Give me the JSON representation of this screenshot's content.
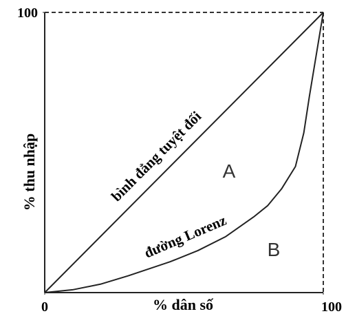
{
  "chart_data": {
    "type": "line",
    "x_label": "% dân số",
    "y_label": "% thu nhập",
    "xlim": [
      0,
      100
    ],
    "ylim": [
      0,
      100
    ],
    "xticks": [
      0,
      100
    ],
    "yticks": [
      100
    ],
    "series": [
      {
        "name": "bình đẳng tuyệt đối",
        "color": "#222222",
        "x": [
          0,
          100
        ],
        "values": [
          0,
          100
        ]
      },
      {
        "name": "đường Lorenz",
        "color": "#222222",
        "x": [
          0,
          10,
          20,
          30,
          45,
          55,
          65,
          75,
          80,
          85,
          90,
          93,
          95,
          97,
          99,
          100
        ],
        "values": [
          0,
          1,
          3,
          6,
          11,
          15,
          20,
          27,
          31,
          37,
          45,
          57,
          70,
          82,
          94,
          100
        ]
      }
    ],
    "annotations": [
      "A",
      "B"
    ]
  }
}
